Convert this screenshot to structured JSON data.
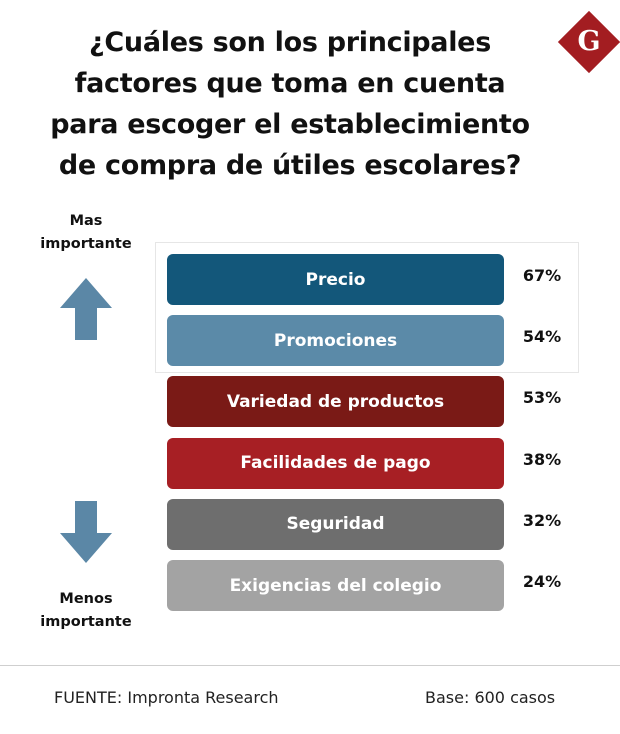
{
  "title_lines": [
    "¿Cuáles son los principales",
    "factores que toma en cuenta",
    "para escoger el establecimiento",
    "de compra de útiles escolares?"
  ],
  "logo_letter": "G",
  "top_label": [
    "Mas",
    "importante"
  ],
  "bottom_label": [
    "Menos",
    "importante"
  ],
  "footer": {
    "source": "FUENTE: Impronta Research",
    "base": "Base: 600 casos"
  },
  "colors": {
    "logo": "#a31d21",
    "arrow": "#5b87a6"
  },
  "chart_data": {
    "type": "table",
    "unit": "%",
    "categories": [
      "Precio",
      "Promociones",
      "Variedad de productos",
      "Facilidades de pago",
      "Seguridad",
      "Exigencias del colegio"
    ],
    "values": [
      67,
      54,
      53,
      38,
      32,
      24
    ],
    "value_labels": [
      "67%",
      "54%",
      "53%",
      "38%",
      "32%",
      "24%"
    ],
    "colors": [
      "#13577a",
      "#5b8aa8",
      "#7a1a16",
      "#a71f24",
      "#6e6e6e",
      "#a3a3a3"
    ],
    "highlighted": [
      "Precio",
      "Promociones"
    ]
  }
}
